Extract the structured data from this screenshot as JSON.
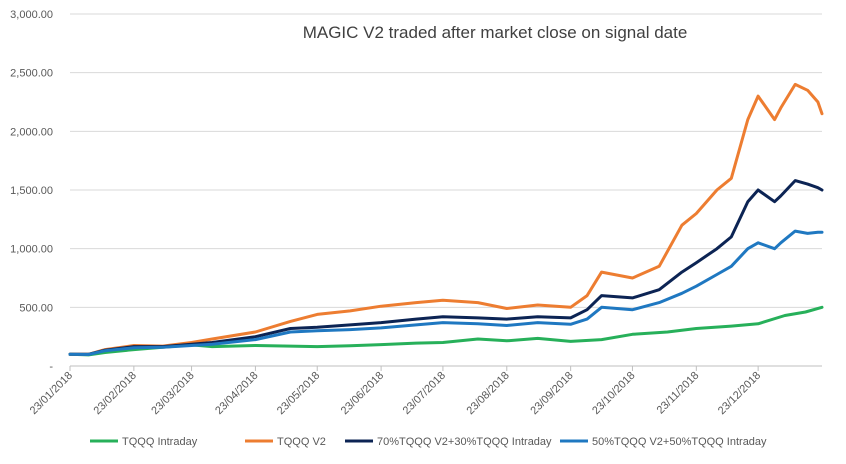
{
  "chart_data": {
    "type": "line",
    "title": "MAGIC V2 traded after market close on signal date",
    "xlabel": "",
    "ylabel": "",
    "ylim": [
      0,
      3000
    ],
    "yticks": [
      0,
      500,
      1000,
      1500,
      2000,
      2500,
      3000
    ],
    "ytick_labels": [
      "-",
      "500.00",
      "1,000.00",
      "1,500.00",
      "2,000.00",
      "2,500.00",
      "3,000.00"
    ],
    "x_start": "2018-01-23",
    "x_end": "2019-01-23",
    "xticks": [
      "2018-01-23",
      "2018-02-23",
      "2018-03-23",
      "2018-04-23",
      "2018-05-23",
      "2018-06-23",
      "2018-07-23",
      "2018-08-23",
      "2018-09-23",
      "2018-10-23",
      "2018-11-23",
      "2018-12-23"
    ],
    "xtick_labels": [
      "23/01/2018",
      "23/02/2018",
      "23/03/2018",
      "23/04/2018",
      "23/05/2018",
      "23/06/2018",
      "23/07/2018",
      "23/08/2018",
      "23/09/2018",
      "23/10/2018",
      "23/11/2018",
      "23/12/2018"
    ],
    "grid": "horizontal",
    "legend_position": "bottom",
    "series": [
      {
        "name": "TQQQ Intraday",
        "color": "#27b05a",
        "x": [
          "2018-01-23",
          "2018-02-01",
          "2018-02-09",
          "2018-02-23",
          "2018-03-09",
          "2018-03-23",
          "2018-04-02",
          "2018-04-23",
          "2018-05-10",
          "2018-05-23",
          "2018-06-08",
          "2018-06-23",
          "2018-07-10",
          "2018-07-23",
          "2018-08-09",
          "2018-08-23",
          "2018-09-07",
          "2018-09-23",
          "2018-10-08",
          "2018-10-23",
          "2018-11-09",
          "2018-11-23",
          "2018-12-10",
          "2018-12-23",
          "2019-01-05",
          "2019-01-15",
          "2019-01-23"
        ],
        "y": [
          100,
          95,
          115,
          140,
          160,
          180,
          165,
          175,
          170,
          165,
          172,
          182,
          195,
          200,
          230,
          215,
          235,
          210,
          225,
          270,
          290,
          320,
          340,
          360,
          430,
          460,
          500
        ]
      },
      {
        "name": "TQQQ V2",
        "color": "#ed7d31",
        "x": [
          "2018-01-23",
          "2018-02-01",
          "2018-02-09",
          "2018-02-23",
          "2018-03-09",
          "2018-03-23",
          "2018-04-02",
          "2018-04-23",
          "2018-05-10",
          "2018-05-23",
          "2018-06-08",
          "2018-06-23",
          "2018-07-10",
          "2018-07-23",
          "2018-08-09",
          "2018-08-23",
          "2018-09-07",
          "2018-09-23",
          "2018-10-01",
          "2018-10-08",
          "2018-10-23",
          "2018-11-05",
          "2018-11-16",
          "2018-11-23",
          "2018-12-03",
          "2018-12-10",
          "2018-12-18",
          "2018-12-23",
          "2018-12-31",
          "2019-01-03",
          "2019-01-10",
          "2019-01-16",
          "2019-01-21",
          "2019-01-23"
        ],
        "y": [
          100,
          100,
          140,
          175,
          170,
          200,
          230,
          290,
          380,
          440,
          470,
          510,
          540,
          560,
          540,
          490,
          520,
          500,
          600,
          800,
          750,
          850,
          1200,
          1300,
          1500,
          1600,
          2100,
          2300,
          2100,
          2200,
          2400,
          2350,
          2250,
          2150
        ]
      },
      {
        "name": "70%TQQQ V2+30%TQQQ Intraday",
        "color": "#0c2454",
        "x": [
          "2018-01-23",
          "2018-02-01",
          "2018-02-09",
          "2018-02-23",
          "2018-03-09",
          "2018-03-23",
          "2018-04-02",
          "2018-04-23",
          "2018-05-10",
          "2018-05-23",
          "2018-06-08",
          "2018-06-23",
          "2018-07-10",
          "2018-07-23",
          "2018-08-09",
          "2018-08-23",
          "2018-09-07",
          "2018-09-23",
          "2018-10-01",
          "2018-10-08",
          "2018-10-23",
          "2018-11-05",
          "2018-11-16",
          "2018-11-23",
          "2018-12-03",
          "2018-12-10",
          "2018-12-18",
          "2018-12-23",
          "2018-12-31",
          "2019-01-03",
          "2019-01-10",
          "2019-01-16",
          "2019-01-21",
          "2019-01-23"
        ],
        "y": [
          100,
          100,
          135,
          165,
          165,
          185,
          200,
          250,
          320,
          330,
          350,
          370,
          400,
          420,
          410,
          400,
          420,
          410,
          480,
          600,
          580,
          650,
          800,
          880,
          1000,
          1100,
          1400,
          1500,
          1400,
          1450,
          1580,
          1550,
          1520,
          1500
        ]
      },
      {
        "name": "50%TQQQ V2+50%TQQQ Intraday",
        "color": "#1f78c1",
        "x": [
          "2018-01-23",
          "2018-02-01",
          "2018-02-09",
          "2018-02-23",
          "2018-03-09",
          "2018-03-23",
          "2018-04-02",
          "2018-04-23",
          "2018-05-10",
          "2018-05-23",
          "2018-06-08",
          "2018-06-23",
          "2018-07-10",
          "2018-07-23",
          "2018-08-09",
          "2018-08-23",
          "2018-09-07",
          "2018-09-23",
          "2018-10-01",
          "2018-10-08",
          "2018-10-23",
          "2018-11-05",
          "2018-11-16",
          "2018-11-23",
          "2018-12-03",
          "2018-12-10",
          "2018-12-18",
          "2018-12-23",
          "2018-12-31",
          "2019-01-03",
          "2019-01-10",
          "2019-01-16",
          "2019-01-21",
          "2019-01-23"
        ],
        "y": [
          100,
          98,
          130,
          155,
          160,
          175,
          185,
          225,
          290,
          300,
          310,
          325,
          350,
          370,
          360,
          345,
          370,
          355,
          400,
          500,
          480,
          540,
          620,
          680,
          780,
          850,
          1000,
          1050,
          1000,
          1050,
          1150,
          1130,
          1140,
          1140
        ]
      }
    ]
  }
}
